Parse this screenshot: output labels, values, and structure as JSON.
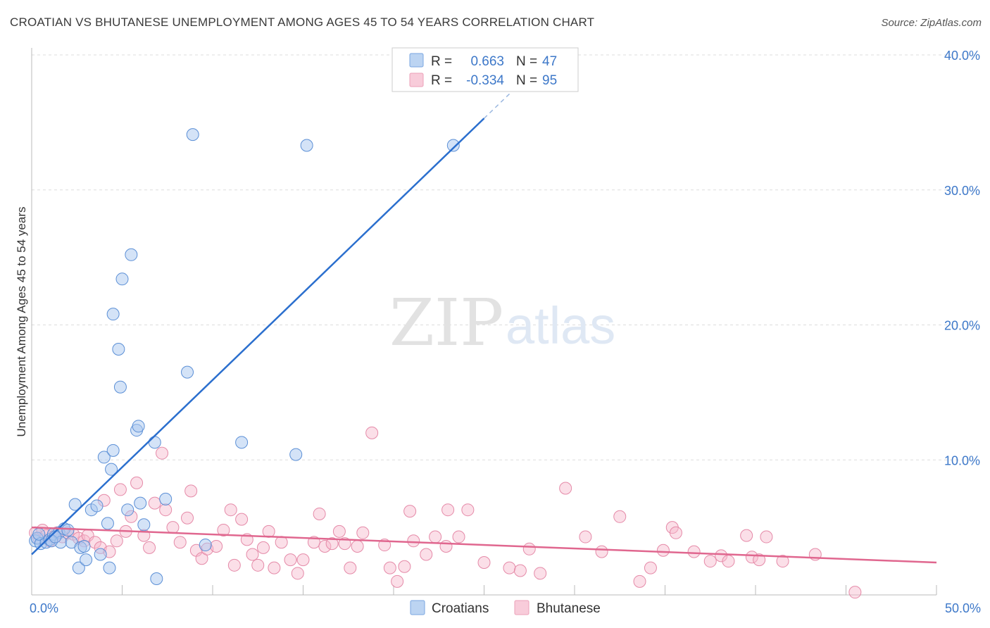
{
  "title": "CROATIAN VS BHUTANESE UNEMPLOYMENT AMONG AGES 45 TO 54 YEARS CORRELATION CHART",
  "source": "Source: ZipAtlas.com",
  "watermark": {
    "zip": "ZIP",
    "atlas": "atlas"
  },
  "colors": {
    "croatians_fill": "#a9c8ef",
    "croatians_stroke": "#5b8fd6",
    "croatians_line": "#2b6fce",
    "bhutanese_fill": "#f6b8cc",
    "bhutanese_stroke": "#e58aa8",
    "bhutanese_line": "#e0678f",
    "grid": "#dddddd",
    "tick_label": "#3d78c9"
  },
  "legend": {
    "row1": {
      "r_label": "R =",
      "r_value": "0.663",
      "n_label": "N =",
      "n_value": "47"
    },
    "row2": {
      "r_label": "R =",
      "r_value": "-0.334",
      "n_label": "N =",
      "n_value": "95"
    }
  },
  "chart_data": {
    "type": "scatter",
    "xlabel": "",
    "ylabel": "Unemployment Among Ages 45 to 54 years",
    "xlim": [
      0,
      50
    ],
    "ylim": [
      0,
      40
    ],
    "x_tick_labels": [
      "0.0%",
      "50.0%"
    ],
    "y_ticks": [
      10,
      20,
      30,
      40
    ],
    "y_tick_labels": [
      "10.0%",
      "20.0%",
      "30.0%",
      "40.0%"
    ],
    "series": [
      {
        "name": "Croatians",
        "r": 0.663,
        "n": 47,
        "trend": {
          "x0": 0,
          "y0": 3.0,
          "x1": 25,
          "y1": 35.3,
          "dash_to_x": 28
        },
        "points": [
          [
            0.2,
            4.0
          ],
          [
            0.3,
            4.2
          ],
          [
            0.5,
            3.8
          ],
          [
            0.8,
            3.9
          ],
          [
            1.0,
            4.1
          ],
          [
            1.2,
            4.5
          ],
          [
            1.5,
            4.6
          ],
          [
            1.6,
            3.9
          ],
          [
            1.8,
            4.9
          ],
          [
            2.0,
            4.8
          ],
          [
            2.2,
            3.9
          ],
          [
            2.4,
            6.7
          ],
          [
            2.6,
            2.0
          ],
          [
            2.7,
            3.5
          ],
          [
            2.9,
            3.6
          ],
          [
            3.0,
            2.6
          ],
          [
            3.3,
            6.3
          ],
          [
            3.6,
            6.6
          ],
          [
            3.8,
            3.0
          ],
          [
            4.0,
            10.2
          ],
          [
            4.2,
            5.3
          ],
          [
            4.3,
            2.0
          ],
          [
            4.5,
            10.7
          ],
          [
            4.4,
            9.3
          ],
          [
            4.5,
            20.8
          ],
          [
            4.8,
            18.2
          ],
          [
            4.9,
            15.4
          ],
          [
            5.0,
            23.4
          ],
          [
            5.3,
            6.3
          ],
          [
            5.5,
            25.2
          ],
          [
            5.8,
            12.2
          ],
          [
            5.9,
            12.5
          ],
          [
            6.0,
            6.8
          ],
          [
            6.2,
            5.2
          ],
          [
            6.9,
            1.2
          ],
          [
            6.8,
            11.3
          ],
          [
            7.4,
            7.1
          ],
          [
            8.6,
            16.5
          ],
          [
            8.9,
            34.1
          ],
          [
            9.6,
            3.7
          ],
          [
            11.6,
            11.3
          ],
          [
            14.6,
            10.4
          ],
          [
            15.2,
            33.3
          ],
          [
            23.3,
            33.3
          ],
          [
            0.4,
            4.5
          ],
          [
            1.1,
            4.0
          ],
          [
            1.3,
            4.3
          ]
        ]
      },
      {
        "name": "Bhutanese",
        "r": -0.334,
        "n": 95,
        "trend": {
          "x0": 0,
          "y0": 5.0,
          "x1": 50,
          "y1": 2.4
        },
        "points": [
          [
            0.2,
            4.6
          ],
          [
            0.4,
            4.2
          ],
          [
            0.6,
            4.8
          ],
          [
            0.8,
            4.4
          ],
          [
            1.0,
            4.0
          ],
          [
            1.2,
            4.3
          ],
          [
            1.4,
            4.6
          ],
          [
            1.7,
            4.3
          ],
          [
            2.0,
            4.6
          ],
          [
            2.3,
            4.5
          ],
          [
            2.6,
            4.2
          ],
          [
            2.9,
            4.0
          ],
          [
            3.1,
            4.4
          ],
          [
            3.5,
            3.9
          ],
          [
            3.8,
            3.5
          ],
          [
            4.0,
            7.0
          ],
          [
            4.3,
            3.2
          ],
          [
            4.7,
            4.0
          ],
          [
            4.9,
            7.8
          ],
          [
            5.2,
            4.7
          ],
          [
            5.5,
            5.8
          ],
          [
            5.8,
            8.3
          ],
          [
            6.2,
            4.4
          ],
          [
            6.5,
            3.5
          ],
          [
            6.8,
            6.8
          ],
          [
            7.2,
            10.5
          ],
          [
            7.4,
            6.3
          ],
          [
            7.8,
            5.0
          ],
          [
            8.2,
            3.9
          ],
          [
            8.6,
            5.7
          ],
          [
            8.8,
            7.7
          ],
          [
            9.1,
            3.3
          ],
          [
            9.4,
            2.7
          ],
          [
            9.7,
            3.4
          ],
          [
            10.2,
            3.6
          ],
          [
            10.6,
            4.8
          ],
          [
            11.0,
            6.3
          ],
          [
            11.2,
            2.2
          ],
          [
            11.6,
            5.6
          ],
          [
            11.9,
            4.1
          ],
          [
            12.2,
            3.0
          ],
          [
            12.5,
            2.2
          ],
          [
            12.8,
            3.5
          ],
          [
            13.1,
            4.7
          ],
          [
            13.4,
            2.0
          ],
          [
            13.8,
            3.9
          ],
          [
            14.3,
            2.6
          ],
          [
            14.7,
            1.6
          ],
          [
            15.0,
            2.6
          ],
          [
            15.6,
            3.9
          ],
          [
            15.9,
            6.0
          ],
          [
            16.2,
            3.6
          ],
          [
            16.6,
            3.8
          ],
          [
            17.0,
            4.7
          ],
          [
            17.3,
            3.8
          ],
          [
            17.6,
            2.0
          ],
          [
            18.0,
            3.6
          ],
          [
            18.3,
            4.6
          ],
          [
            18.8,
            12.0
          ],
          [
            19.5,
            3.7
          ],
          [
            19.8,
            2.0
          ],
          [
            20.2,
            1.0
          ],
          [
            20.6,
            2.1
          ],
          [
            20.9,
            6.2
          ],
          [
            21.1,
            4.0
          ],
          [
            21.8,
            3.0
          ],
          [
            22.3,
            4.3
          ],
          [
            22.9,
            3.6
          ],
          [
            23.0,
            6.3
          ],
          [
            23.6,
            4.3
          ],
          [
            24.1,
            6.3
          ],
          [
            25.0,
            2.4
          ],
          [
            26.4,
            2.0
          ],
          [
            27.0,
            1.8
          ],
          [
            27.5,
            3.4
          ],
          [
            28.1,
            1.6
          ],
          [
            29.5,
            7.9
          ],
          [
            30.6,
            4.3
          ],
          [
            31.5,
            3.2
          ],
          [
            32.5,
            5.8
          ],
          [
            33.6,
            1.0
          ],
          [
            34.2,
            2.0
          ],
          [
            34.9,
            3.3
          ],
          [
            35.4,
            5.0
          ],
          [
            35.6,
            4.6
          ],
          [
            36.6,
            3.2
          ],
          [
            37.5,
            2.5
          ],
          [
            38.1,
            2.9
          ],
          [
            38.5,
            2.5
          ],
          [
            39.5,
            4.4
          ],
          [
            39.8,
            2.8
          ],
          [
            40.2,
            2.6
          ],
          [
            40.6,
            4.3
          ],
          [
            41.5,
            2.5
          ],
          [
            43.3,
            3.0
          ]
        ]
      }
    ],
    "extra_points_bhutanese": [
      [
        45.5,
        0.2
      ]
    ]
  },
  "bottom_legend": {
    "croatians": "Croatians",
    "bhutanese": "Bhutanese"
  }
}
